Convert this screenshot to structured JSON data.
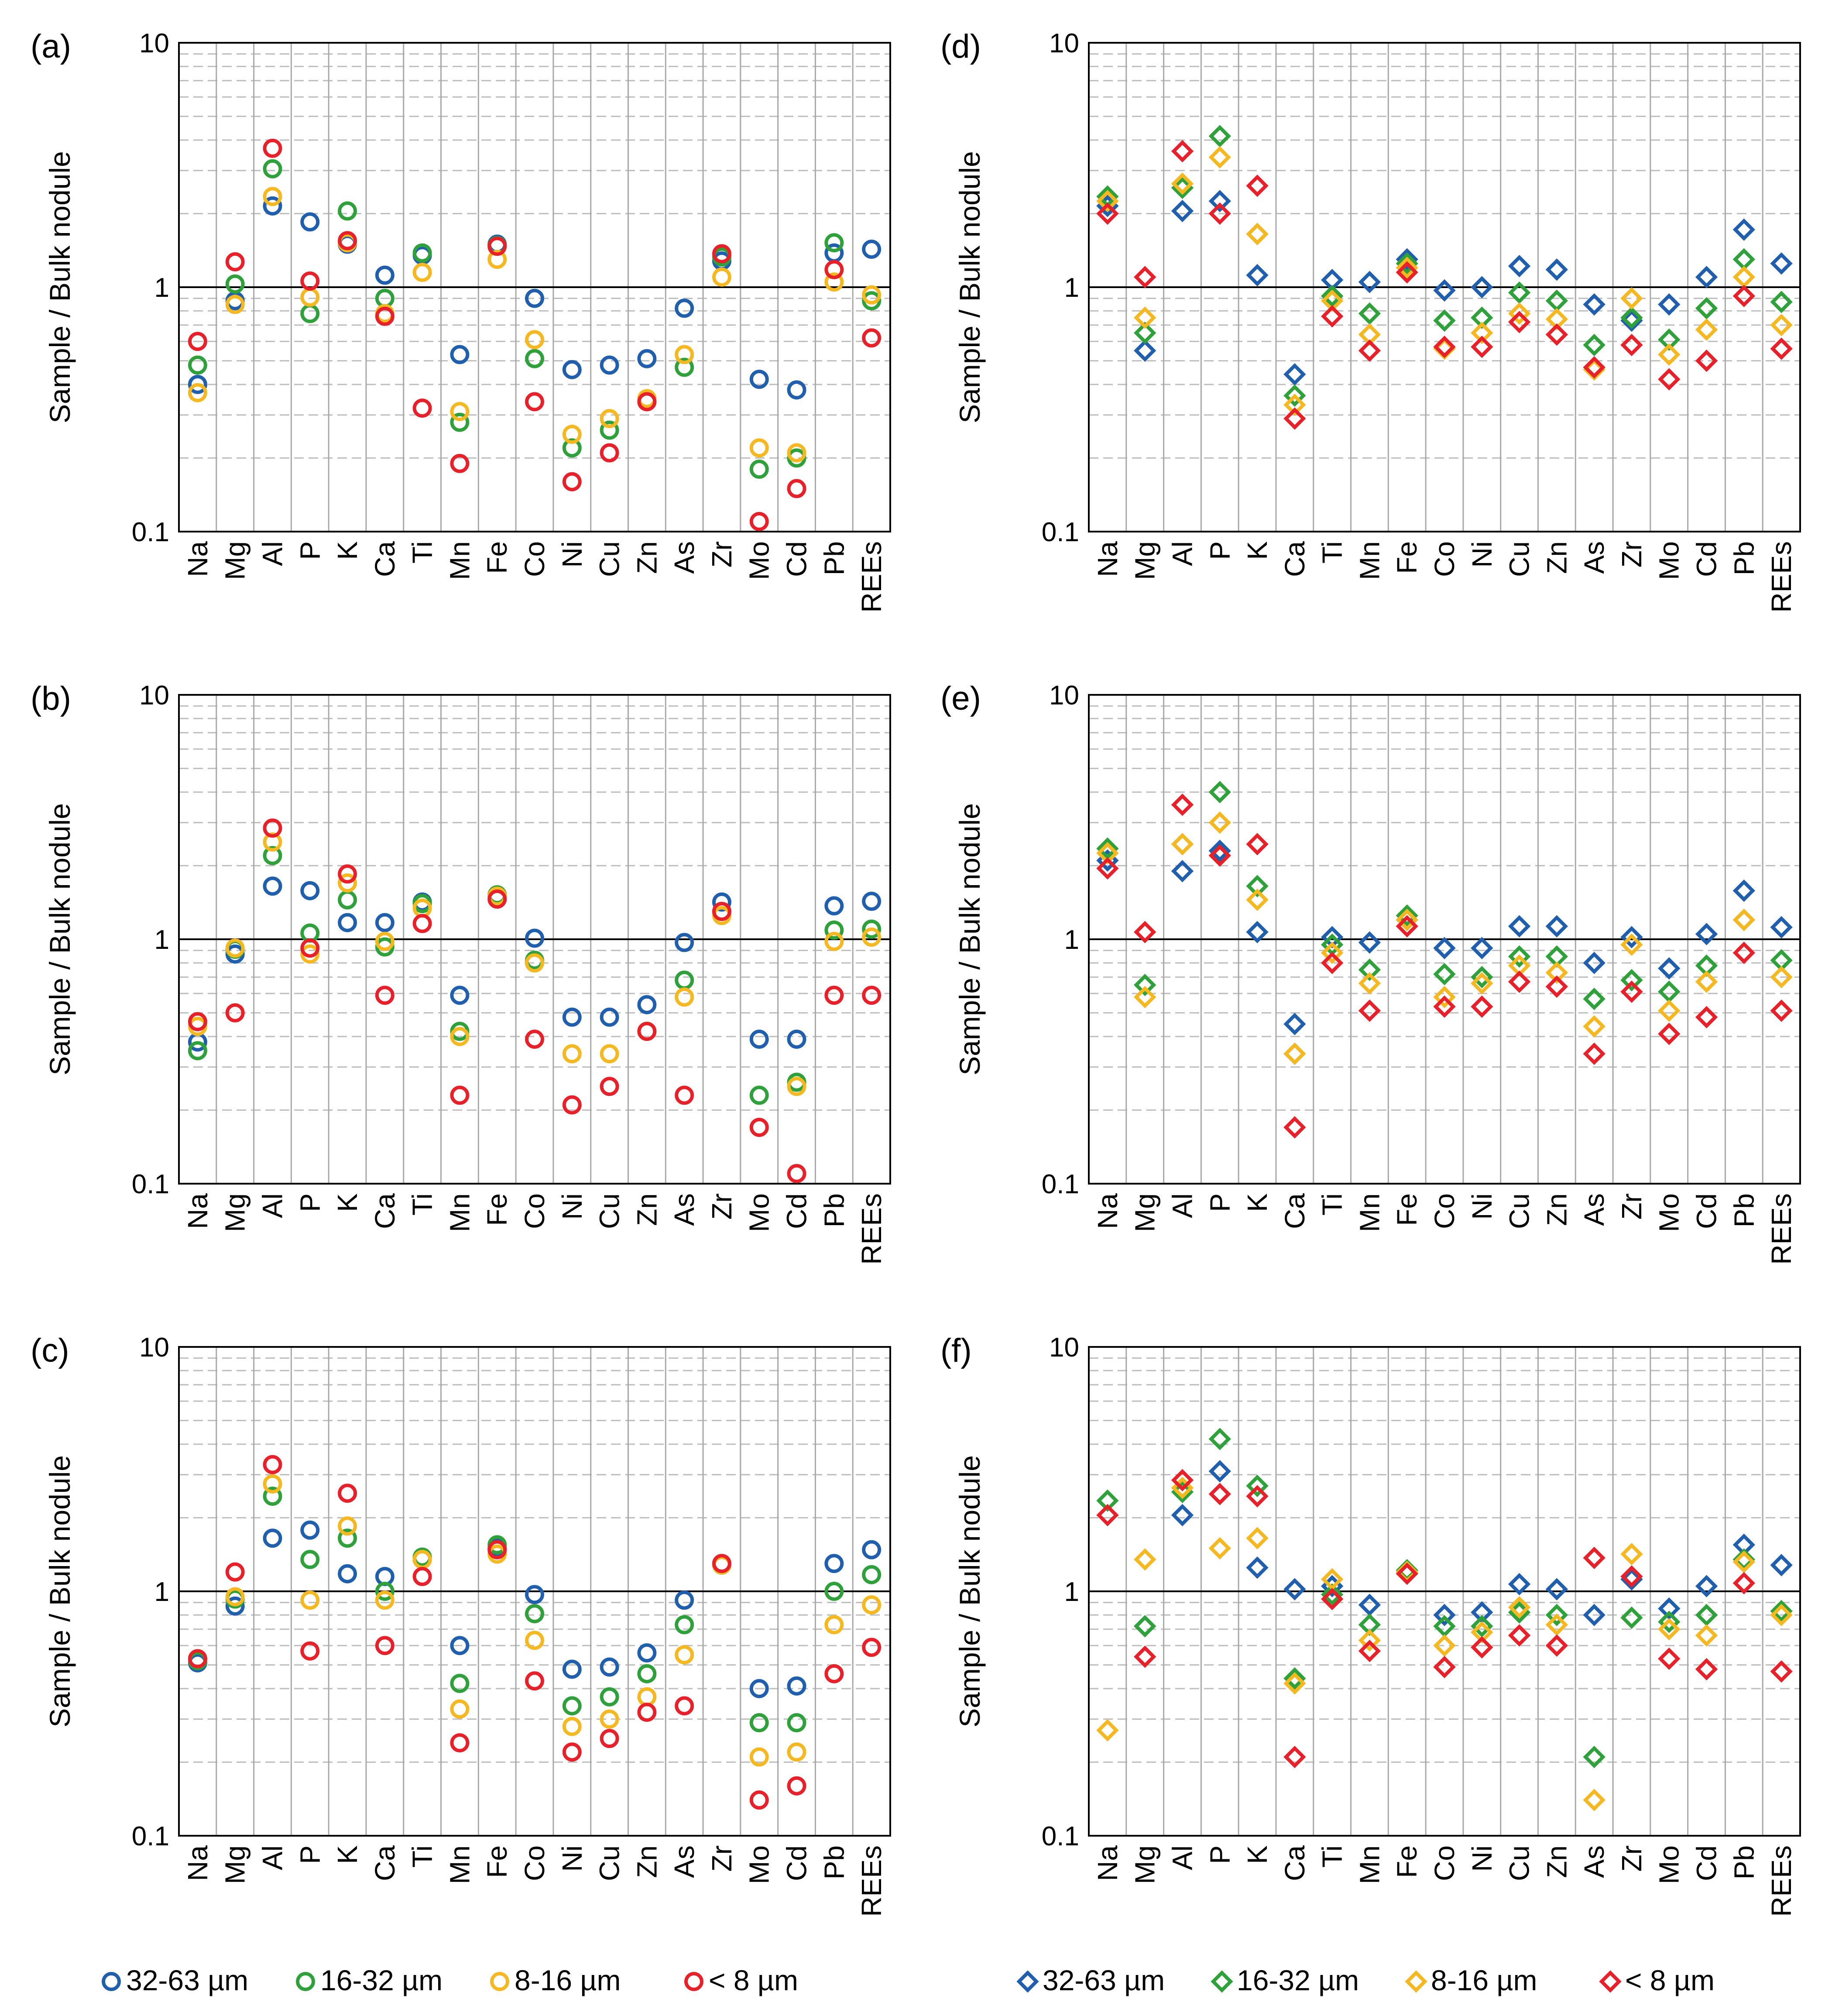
{
  "figure": {
    "y_axis_label": "Sample / Bulk nodule",
    "y_tick_labels": [
      "10",
      "1",
      "0.1"
    ],
    "categories": [
      "Na",
      "Mg",
      "Al",
      "P",
      "K",
      "Ca",
      "Ti",
      "Mn",
      "Fe",
      "Co",
      "Ni",
      "Cu",
      "Zn",
      "As",
      "Zr",
      "Mo",
      "Cd",
      "Pb",
      "REEs"
    ],
    "legends": {
      "circles": [
        {
          "symbol": "○",
          "label": "32-63 µm",
          "color": "#1f5fad"
        },
        {
          "symbol": "○",
          "label": "16-32 µm",
          "color": "#2ea13a"
        },
        {
          "symbol": "○",
          "label": "8-16 µm",
          "color": "#f5b820"
        },
        {
          "symbol": "○",
          "label": "< 8 µm",
          "color": "#e8202a"
        }
      ],
      "diamonds": [
        {
          "symbol": "◇",
          "label": "32-63 µm",
          "color": "#1f5fad"
        },
        {
          "symbol": "◇",
          "label": "16-32 µm",
          "color": "#2ea13a"
        },
        {
          "symbol": "◇",
          "label": "8-16 µm",
          "color": "#f5b820"
        },
        {
          "symbol": "◇",
          "label": "< 8 µm",
          "color": "#e8202a"
        }
      ]
    }
  },
  "chart_data": [
    {
      "panel": "(a)",
      "type": "scatter",
      "marker": "circle",
      "yscale": "log",
      "ylim": [
        0.1,
        10
      ],
      "ylabel": "Sample / Bulk nodule",
      "grid": true,
      "reference_line": 1,
      "categories": [
        "Na",
        "Mg",
        "Al",
        "P",
        "K",
        "Ca",
        "Ti",
        "Mn",
        "Fe",
        "Co",
        "Ni",
        "Cu",
        "Zn",
        "As",
        "Zr",
        "Mo",
        "Cd",
        "Pb",
        "REEs"
      ],
      "series": [
        {
          "name": "32-63 µm",
          "color": "#1f5fad",
          "values": [
            0.4,
            0.88,
            2.15,
            1.85,
            1.5,
            1.12,
            1.35,
            0.53,
            1.5,
            0.9,
            0.46,
            0.48,
            0.51,
            0.82,
            1.28,
            0.42,
            0.38,
            1.38,
            1.43
          ]
        },
        {
          "name": "16-32 µm",
          "color": "#2ea13a",
          "values": [
            0.48,
            1.03,
            3.05,
            0.78,
            2.05,
            0.9,
            1.38,
            0.28,
            1.48,
            0.51,
            0.22,
            0.26,
            0.34,
            0.47,
            1.33,
            0.18,
            0.2,
            1.52,
            0.88
          ]
        },
        {
          "name": "8-16 µm",
          "color": "#f5b820",
          "values": [
            0.37,
            0.85,
            2.35,
            0.91,
            1.52,
            0.78,
            1.15,
            0.31,
            1.3,
            0.61,
            0.25,
            0.29,
            0.35,
            0.53,
            1.1,
            0.22,
            0.21,
            1.05,
            0.93
          ]
        },
        {
          "name": "< 8 µm",
          "color": "#e8202a",
          "values": [
            0.6,
            1.27,
            3.7,
            1.06,
            1.55,
            0.76,
            0.32,
            0.19,
            1.47,
            0.34,
            0.16,
            0.21,
            0.34,
            null,
            1.37,
            0.11,
            0.15,
            1.18,
            0.62
          ]
        }
      ]
    },
    {
      "panel": "(b)",
      "type": "scatter",
      "marker": "circle",
      "yscale": "log",
      "ylim": [
        0.1,
        10
      ],
      "ylabel": "Sample / Bulk nodule",
      "grid": true,
      "reference_line": 1,
      "categories": [
        "Na",
        "Mg",
        "Al",
        "P",
        "K",
        "Ca",
        "Ti",
        "Mn",
        "Fe",
        "Co",
        "Ni",
        "Cu",
        "Zn",
        "As",
        "Zr",
        "Mo",
        "Cd",
        "Pb",
        "REEs"
      ],
      "series": [
        {
          "name": "32-63 µm",
          "color": "#1f5fad",
          "values": [
            0.38,
            0.87,
            1.65,
            1.58,
            1.17,
            1.17,
            1.42,
            0.59,
            1.5,
            1.01,
            0.48,
            0.48,
            0.54,
            0.97,
            1.42,
            0.39,
            0.39,
            1.37,
            1.43
          ]
        },
        {
          "name": "16-32 µm",
          "color": "#2ea13a",
          "values": [
            0.35,
            0.91,
            2.2,
            1.06,
            1.45,
            0.93,
            1.4,
            0.42,
            1.52,
            0.82,
            null,
            null,
            0.42,
            0.68,
            1.3,
            0.23,
            0.26,
            1.09,
            1.1
          ]
        },
        {
          "name": "8-16 µm",
          "color": "#f5b820",
          "values": [
            0.44,
            0.92,
            2.5,
            0.87,
            1.7,
            0.98,
            1.34,
            0.4,
            1.5,
            0.8,
            0.34,
            0.34,
            0.42,
            0.58,
            1.25,
            0.17,
            0.25,
            0.98,
            1.02
          ]
        },
        {
          "name": "< 8 µm",
          "color": "#e8202a",
          "values": [
            0.46,
            0.5,
            2.85,
            0.92,
            1.85,
            0.59,
            1.16,
            0.23,
            1.46,
            0.39,
            0.21,
            0.25,
            0.42,
            0.23,
            1.3,
            0.17,
            0.11,
            0.59,
            0.59
          ]
        }
      ]
    },
    {
      "panel": "(c)",
      "type": "scatter",
      "marker": "circle",
      "yscale": "log",
      "ylim": [
        0.1,
        10
      ],
      "ylabel": "Sample / Bulk nodule",
      "grid": true,
      "reference_line": 1,
      "categories": [
        "Na",
        "Mg",
        "Al",
        "P",
        "K",
        "Ca",
        "Ti",
        "Mn",
        "Fe",
        "Co",
        "Ni",
        "Cu",
        "Zn",
        "As",
        "Zr",
        "Mo",
        "Cd",
        "Pb",
        "REEs"
      ],
      "series": [
        {
          "name": "32-63 µm",
          "color": "#1f5fad",
          "values": [
            0.51,
            0.87,
            1.65,
            1.78,
            1.18,
            1.15,
            1.35,
            0.6,
            1.5,
            0.97,
            0.48,
            0.49,
            0.56,
            0.92,
            1.28,
            0.4,
            0.41,
            1.3,
            1.48
          ]
        },
        {
          "name": "16-32 µm",
          "color": "#2ea13a",
          "values": [
            0.52,
            0.93,
            2.45,
            1.35,
            1.65,
            1.0,
            1.38,
            0.42,
            1.55,
            0.81,
            0.34,
            0.37,
            0.46,
            0.73,
            1.3,
            0.29,
            0.29,
            1.0,
            1.17
          ]
        },
        {
          "name": "8-16 µm",
          "color": "#f5b820",
          "values": [
            0.53,
            0.95,
            2.75,
            0.92,
            1.85,
            0.92,
            1.35,
            0.33,
            1.42,
            0.63,
            0.28,
            0.3,
            0.37,
            0.55,
            1.28,
            0.21,
            0.22,
            0.73,
            0.88
          ]
        },
        {
          "name": "< 8 µm",
          "color": "#e8202a",
          "values": [
            0.53,
            1.2,
            3.3,
            0.57,
            2.52,
            0.6,
            1.15,
            0.24,
            1.48,
            0.43,
            0.22,
            0.25,
            0.32,
            0.34,
            1.3,
            0.14,
            0.16,
            0.46,
            0.59
          ]
        }
      ]
    },
    {
      "panel": "(d)",
      "type": "scatter",
      "marker": "diamond",
      "yscale": "log",
      "ylim": [
        0.1,
        10
      ],
      "ylabel": "Sample / Bulk nodule",
      "grid": true,
      "reference_line": 1,
      "categories": [
        "Na",
        "Mg",
        "Al",
        "P",
        "K",
        "Ca",
        "Ti",
        "Mn",
        "Fe",
        "Co",
        "Ni",
        "Cu",
        "Zn",
        "As",
        "Zr",
        "Mo",
        "Cd",
        "Pb",
        "REEs"
      ],
      "series": [
        {
          "name": "32-63 µm",
          "color": "#1f5fad",
          "values": [
            2.15,
            0.55,
            2.05,
            2.25,
            1.12,
            0.44,
            1.07,
            1.05,
            1.3,
            0.97,
            1.0,
            1.22,
            1.18,
            0.85,
            0.73,
            0.85,
            1.1,
            1.72,
            1.25
          ]
        },
        {
          "name": "16-32 µm",
          "color": "#2ea13a",
          "values": [
            2.35,
            0.65,
            2.55,
            4.15,
            1.65,
            0.36,
            0.92,
            0.78,
            1.25,
            0.73,
            0.75,
            0.95,
            0.88,
            0.58,
            0.75,
            0.61,
            0.82,
            1.3,
            0.87
          ]
        },
        {
          "name": "8-16 µm",
          "color": "#f5b820",
          "values": [
            2.25,
            0.75,
            2.65,
            3.4,
            1.65,
            0.33,
            0.88,
            0.64,
            1.2,
            0.56,
            0.65,
            0.78,
            0.74,
            0.46,
            0.9,
            0.53,
            0.67,
            1.1,
            0.7
          ]
        },
        {
          "name": "< 8 µm",
          "color": "#e8202a",
          "values": [
            2.0,
            1.1,
            3.6,
            2.0,
            2.6,
            0.29,
            0.76,
            0.55,
            1.15,
            0.57,
            0.57,
            0.72,
            0.64,
            0.47,
            0.58,
            0.42,
            0.5,
            0.92,
            0.56
          ]
        }
      ]
    },
    {
      "panel": "(e)",
      "type": "scatter",
      "marker": "diamond",
      "yscale": "log",
      "ylim": [
        0.1,
        10
      ],
      "ylabel": "Sample / Bulk nodule",
      "grid": true,
      "reference_line": 1,
      "categories": [
        "Na",
        "Mg",
        "Al",
        "P",
        "K",
        "Ca",
        "Ti",
        "Mn",
        "Fe",
        "Co",
        "Ni",
        "Cu",
        "Zn",
        "As",
        "Zr",
        "Mo",
        "Cd",
        "Pb",
        "REEs"
      ],
      "series": [
        {
          "name": "32-63 µm",
          "color": "#1f5fad",
          "values": [
            2.1,
            null,
            1.9,
            2.3,
            1.07,
            0.45,
            1.02,
            0.97,
            1.2,
            0.92,
            0.92,
            1.13,
            1.13,
            0.8,
            1.02,
            0.76,
            1.05,
            1.58,
            1.12
          ]
        },
        {
          "name": "16-32 µm",
          "color": "#2ea13a",
          "values": [
            2.35,
            0.65,
            2.45,
            4.0,
            1.65,
            0.34,
            0.95,
            0.75,
            1.25,
            0.72,
            0.7,
            0.85,
            0.85,
            0.57,
            0.68,
            0.61,
            0.78,
            1.2,
            0.82
          ]
        },
        {
          "name": "8-16 µm",
          "color": "#f5b820",
          "values": [
            2.25,
            0.58,
            2.45,
            3.0,
            1.45,
            0.34,
            0.88,
            0.66,
            1.2,
            0.58,
            0.66,
            0.78,
            0.73,
            0.44,
            0.95,
            0.51,
            0.67,
            1.2,
            0.7
          ]
        },
        {
          "name": "< 8 µm",
          "color": "#e8202a",
          "values": [
            1.95,
            1.07,
            3.55,
            2.2,
            2.45,
            0.17,
            0.8,
            0.51,
            1.13,
            0.53,
            0.53,
            0.67,
            0.64,
            0.34,
            0.61,
            0.41,
            0.48,
            0.88,
            0.51
          ]
        }
      ]
    },
    {
      "panel": "(f)",
      "type": "scatter",
      "marker": "diamond",
      "yscale": "log",
      "ylim": [
        0.1,
        10
      ],
      "ylabel": "Sample / Bulk nodule",
      "grid": true,
      "reference_line": 1,
      "categories": [
        "Na",
        "Mg",
        "Al",
        "P",
        "K",
        "Ca",
        "Ti",
        "Mn",
        "Fe",
        "Co",
        "Ni",
        "Cu",
        "Zn",
        "As",
        "Zr",
        "Mo",
        "Cd",
        "Pb",
        "REEs"
      ],
      "series": [
        {
          "name": "32-63 µm",
          "color": "#1f5fad",
          "values": [
            null,
            0.72,
            2.05,
            3.1,
            1.25,
            1.02,
            1.05,
            0.88,
            1.2,
            0.8,
            0.82,
            1.07,
            1.02,
            0.8,
            1.12,
            0.85,
            1.05,
            1.55,
            1.28
          ]
        },
        {
          "name": "16-32 µm",
          "color": "#2ea13a",
          "values": [
            2.35,
            0.72,
            2.55,
            4.2,
            2.7,
            0.44,
            0.97,
            0.73,
            1.22,
            0.72,
            0.72,
            0.82,
            0.8,
            0.21,
            0.78,
            0.75,
            0.8,
            1.35,
            0.83
          ]
        },
        {
          "name": "8-16 µm",
          "color": "#f5b820",
          "values": [
            0.27,
            1.35,
            2.65,
            1.5,
            1.65,
            0.42,
            1.12,
            0.63,
            1.2,
            0.6,
            0.68,
            0.86,
            0.73,
            0.14,
            1.42,
            0.7,
            0.66,
            1.32,
            0.8
          ]
        },
        {
          "name": "< 8 µm",
          "color": "#e8202a",
          "values": [
            2.05,
            0.54,
            2.85,
            2.5,
            2.45,
            0.21,
            0.93,
            0.57,
            1.18,
            0.49,
            0.59,
            0.66,
            0.6,
            1.37,
            1.15,
            0.53,
            0.48,
            1.08,
            0.47
          ]
        }
      ]
    }
  ]
}
